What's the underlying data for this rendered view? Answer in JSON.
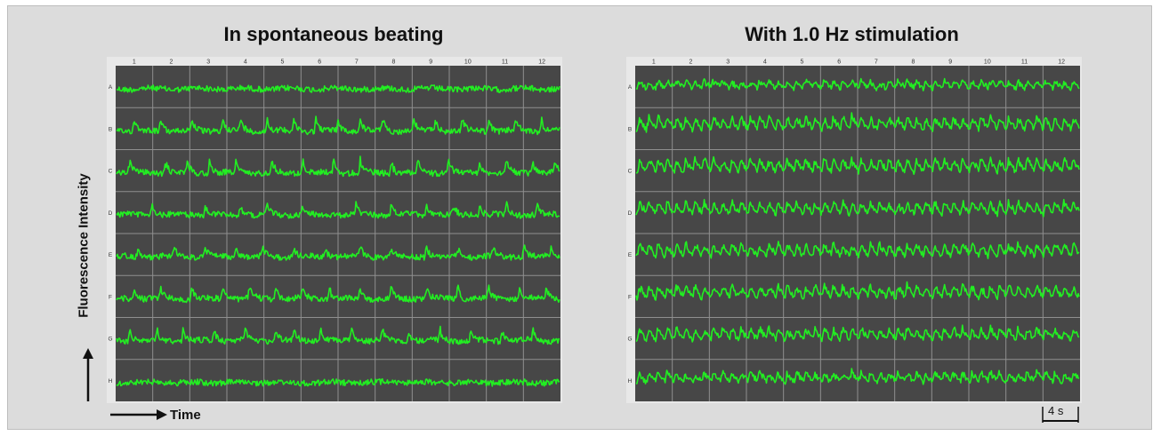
{
  "chart_data": [
    {
      "type": "line",
      "title": "In spontaneous beating",
      "ylabel": "Fluorescence Intensity",
      "xlabel": "Time",
      "columns": [
        "1",
        "2",
        "3",
        "4",
        "5",
        "6",
        "7",
        "8",
        "9",
        "10",
        "11",
        "12"
      ],
      "rows": [
        "A",
        "B",
        "C",
        "D",
        "E",
        "F",
        "G",
        "H"
      ],
      "series": [
        {
          "row": "A",
          "spike_times": [],
          "spike_amplitude": 0.05
        },
        {
          "row": "B",
          "spike_times": [
            0.04,
            0.1,
            0.17,
            0.24,
            0.28,
            0.34,
            0.4,
            0.45,
            0.5,
            0.55,
            0.6,
            0.67,
            0.72,
            0.78,
            0.84,
            0.9,
            0.96
          ],
          "spike_amplitude": 0.55
        },
        {
          "row": "C",
          "spike_times": [
            0.03,
            0.11,
            0.16,
            0.21,
            0.27,
            0.35,
            0.42,
            0.49,
            0.55,
            0.62,
            0.68,
            0.75,
            0.82,
            0.88,
            0.94,
            0.99
          ],
          "spike_amplitude": 0.6
        },
        {
          "row": "D",
          "spike_times": [
            0.08,
            0.2,
            0.28,
            0.34,
            0.42,
            0.54,
            0.62,
            0.7,
            0.76,
            0.82,
            0.88,
            0.95
          ],
          "spike_amplitude": 0.45
        },
        {
          "row": "E",
          "spike_times": [
            0.05,
            0.13,
            0.2,
            0.27,
            0.33,
            0.4,
            0.47,
            0.55,
            0.62,
            0.7,
            0.77,
            0.85,
            0.92,
            0.98
          ],
          "spike_amplitude": 0.45
        },
        {
          "row": "F",
          "spike_times": [
            0.04,
            0.1,
            0.17,
            0.24,
            0.3,
            0.36,
            0.42,
            0.48,
            0.55,
            0.62,
            0.7,
            0.77,
            0.84,
            0.91,
            0.97
          ],
          "spike_amplitude": 0.55
        },
        {
          "row": "G",
          "spike_times": [
            0.03,
            0.09,
            0.15,
            0.22,
            0.29,
            0.36,
            0.4,
            0.46,
            0.53,
            0.6,
            0.66,
            0.73,
            0.8,
            0.87,
            0.94
          ],
          "spike_amplitude": 0.55
        },
        {
          "row": "H",
          "spike_times": [],
          "spike_amplitude": 0.05
        }
      ]
    },
    {
      "type": "line",
      "title": "With 1.0 Hz stimulation",
      "columns": [
        "1",
        "2",
        "3",
        "4",
        "5",
        "6",
        "7",
        "8",
        "9",
        "10",
        "11",
        "12"
      ],
      "rows": [
        "A",
        "B",
        "C",
        "D",
        "E",
        "F",
        "G",
        "H"
      ],
      "stimulation_hz": 1.0,
      "beats_per_trace": 48,
      "series": [
        {
          "row": "A",
          "spike_amplitude": 0.35
        },
        {
          "row": "B",
          "spike_amplitude": 0.6
        },
        {
          "row": "C",
          "spike_amplitude": 0.6
        },
        {
          "row": "D",
          "spike_amplitude": 0.55
        },
        {
          "row": "E",
          "spike_amplitude": 0.55
        },
        {
          "row": "F",
          "spike_amplitude": 0.55
        },
        {
          "row": "G",
          "spike_amplitude": 0.55
        },
        {
          "row": "H",
          "spike_amplitude": 0.45
        }
      ],
      "scale_bar": "4 s"
    }
  ],
  "colors": {
    "trace": "#22ee22",
    "plot_background": "#474747",
    "grid": "#8f8f8f",
    "figure_background": "#dcdcdc"
  }
}
